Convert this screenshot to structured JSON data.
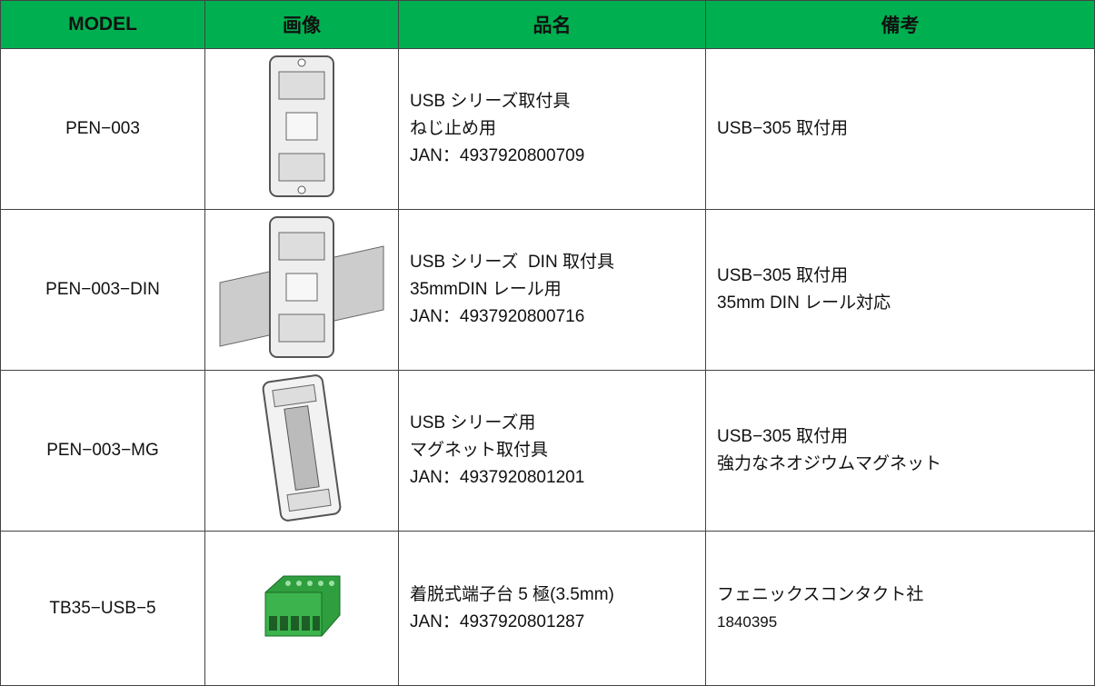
{
  "table": {
    "header": [
      "MODEL",
      "画像",
      "品名",
      "備考"
    ],
    "rows": [
      {
        "model": "PEN−003",
        "name": [
          "USB シリーズ取付具",
          "ねじ止め用",
          "JAN：4937920800709"
        ],
        "note": [
          "USB−305 取付用"
        ]
      },
      {
        "model": "PEN−003−DIN",
        "name": [
          "USB シリーズ  DIN 取付具",
          "35mmDIN レール用",
          "JAN：4937920800716"
        ],
        "note": [
          "USB−305 取付用",
          "35mm DIN レール対応"
        ]
      },
      {
        "model": "PEN−003−MG",
        "name": [
          "USB シリーズ用",
          "マグネット取付具",
          "JAN：4937920801201"
        ],
        "note": [
          "USB−305 取付用",
          "強力なネオジウムマグネット"
        ]
      },
      {
        "model": "TB35−USB−5",
        "name": [
          "着脱式端子台 5 極(3.5mm)",
          "JAN：4937920801287"
        ],
        "note": [
          "フェニックスコンタクト社",
          "1840395"
        ]
      }
    ]
  }
}
